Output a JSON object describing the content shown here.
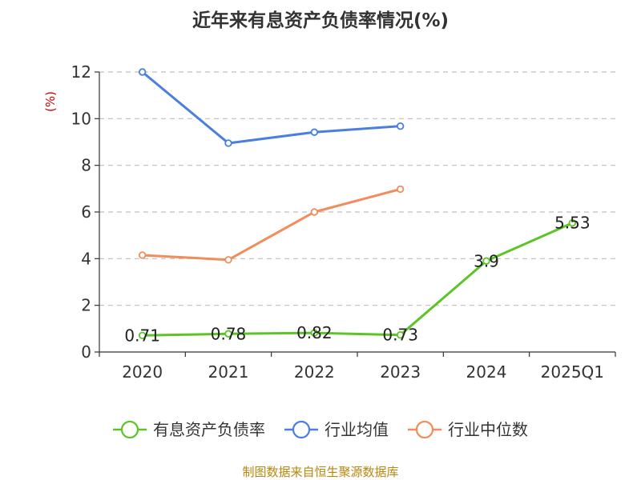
{
  "chart_data": {
    "type": "line",
    "title": "近年来有息资产负债率情况(%)",
    "ylabel": "(%)",
    "xlabel": "",
    "categories": [
      "2020",
      "2021",
      "2022",
      "2023",
      "2024",
      "2025Q1"
    ],
    "ylim": [
      0,
      12
    ],
    "yticks": [
      0,
      2,
      4,
      6,
      8,
      10,
      12
    ],
    "grid": true,
    "legend_position": "bottom",
    "series": [
      {
        "name": "有息资产负债率",
        "color": "#5cc425",
        "values": [
          0.71,
          0.78,
          0.82,
          0.73,
          3.9,
          5.53
        ],
        "labels": [
          "0.71",
          "0.78",
          "0.82",
          "0.73",
          "3.9",
          "5.53"
        ]
      },
      {
        "name": "行业均值",
        "color": "#4a7fde",
        "values": [
          12.0,
          8.95,
          9.42,
          9.68,
          null,
          null
        ]
      },
      {
        "name": "行业中位数",
        "color": "#f28c5a",
        "values": [
          4.15,
          3.95,
          6.0,
          6.98,
          null,
          null
        ]
      }
    ],
    "source": "制图数据来自恒生聚源数据库"
  }
}
